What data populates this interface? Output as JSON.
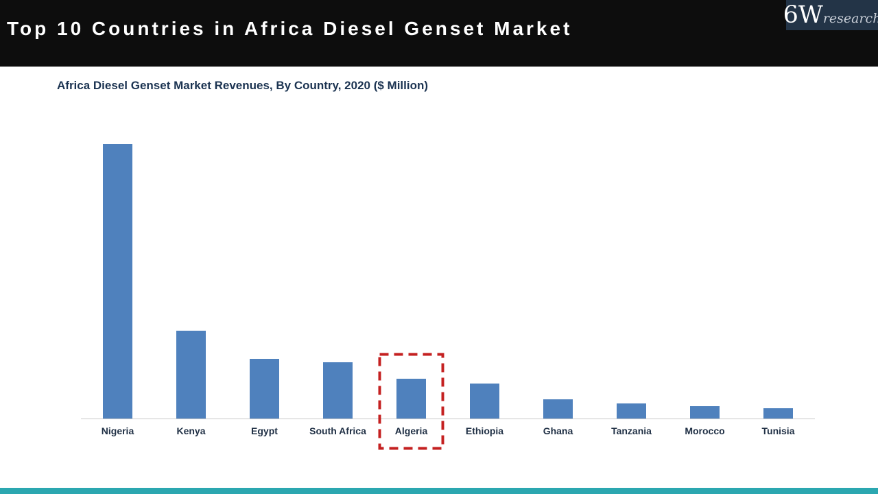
{
  "header": {
    "title": "Top 10 Countries in Africa Diesel Genset Market",
    "bg_color": "#0d0d0d"
  },
  "logo": {
    "text_main": "6W",
    "text_sub": "research",
    "bg_color": "#233447"
  },
  "subtitle": "Africa Diesel Genset Market Revenues, By Country, 2020 ($ Million)",
  "chart_data": {
    "type": "bar",
    "title": "Africa Diesel Genset Market Revenues, By Country, 2020 ($ Million)",
    "categories": [
      "Nigeria",
      "Kenya",
      "Egypt",
      "South Africa",
      "Algeria",
      "Ethiopia",
      "Ghana",
      "Tanzania",
      "Morocco",
      "Tunisia"
    ],
    "values": [
      400,
      128,
      87,
      82,
      58,
      51,
      28,
      22,
      18,
      15
    ],
    "values_note": "relative bar heights in pixels; chart displays no numeric value axis or data labels",
    "xlabel": "",
    "ylabel": "",
    "grid": false,
    "legend": "none",
    "bar_color": "#4f81bd",
    "axis_line_color": "#c8c8c8",
    "label_color": "#213146",
    "highlight": {
      "category": "Algeria",
      "style": "red dashed rectangle around bar and label",
      "color": "#c42020"
    }
  },
  "footer": {
    "accent_color": "#2ba7b0"
  }
}
